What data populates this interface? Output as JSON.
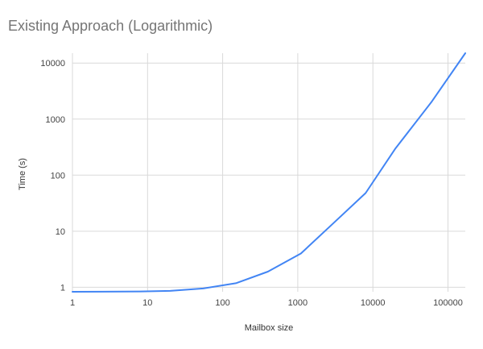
{
  "chart_data": {
    "type": "line",
    "title": "Existing Approach (Logarithmic)",
    "xlabel": "Mailbox size",
    "ylabel": "Time (s)",
    "x_scale": "log",
    "y_scale": "log",
    "xlim": [
      1,
      170000
    ],
    "ylim": [
      0.83,
      15000
    ],
    "grid": true,
    "x_ticks": [
      "1",
      "10",
      "100",
      "1000",
      "10000",
      "100000"
    ],
    "x_tick_values": [
      1,
      10,
      100,
      1000,
      10000,
      100000
    ],
    "y_ticks": [
      "1",
      "10",
      "100",
      "1000",
      "10000"
    ],
    "y_tick_values": [
      1,
      10,
      100,
      1000,
      10000
    ],
    "series": [
      {
        "color": "#4285f4",
        "x": [
          1,
          8,
          20,
          55,
          150,
          400,
          1100,
          3000,
          8000,
          20000,
          60000,
          170000
        ],
        "y": [
          0.83,
          0.84,
          0.86,
          0.95,
          1.18,
          1.9,
          4.0,
          14,
          48,
          300,
          2000,
          15000
        ]
      }
    ]
  }
}
